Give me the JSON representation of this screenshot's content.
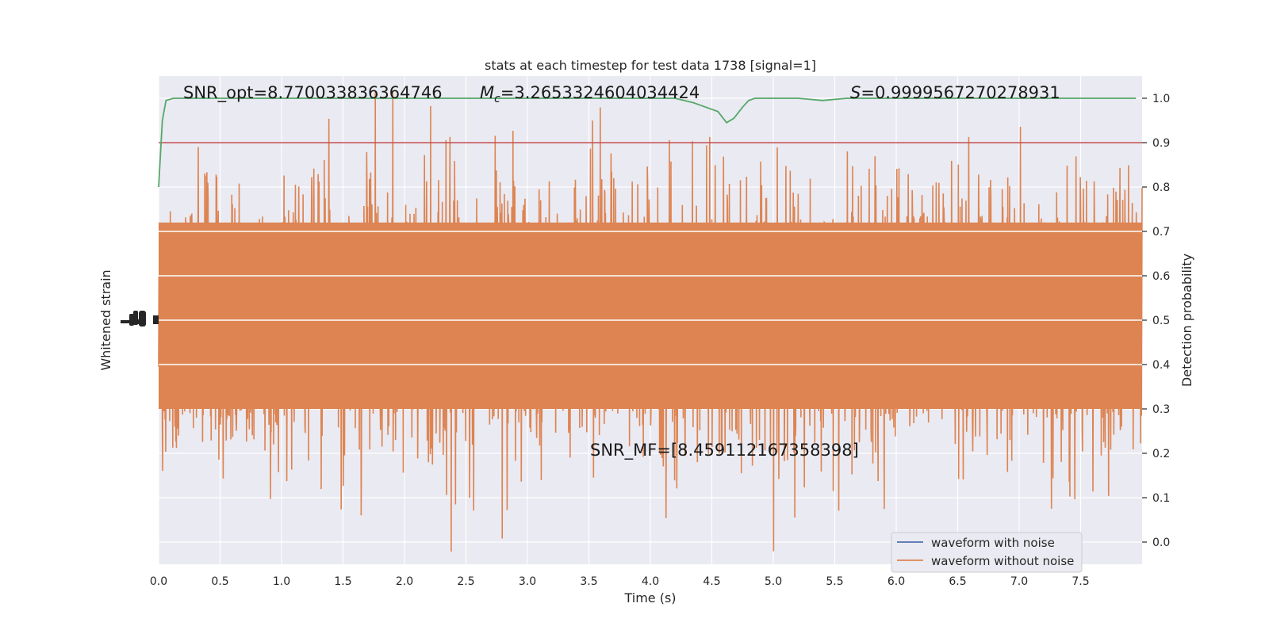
{
  "chart_data": {
    "type": "line",
    "title": "stats at each timestep for test data 1738 [signal=1]",
    "xlabel": "Time (s)",
    "ylabel_left": "Whitened strain",
    "ylabel_right": "Detection probability",
    "xlim": [
      0.0,
      8.0
    ],
    "ylim_right": [
      -0.05,
      1.05
    ],
    "x_ticks": [
      "0.0",
      "0.5",
      "1.0",
      "1.5",
      "2.0",
      "2.5",
      "3.0",
      "3.5",
      "4.0",
      "4.5",
      "5.0",
      "5.5",
      "6.0",
      "6.5",
      "7.0",
      "7.5"
    ],
    "x_tick_values": [
      0.0,
      0.5,
      1.0,
      1.5,
      2.0,
      2.5,
      3.0,
      3.5,
      4.0,
      4.5,
      5.0,
      5.5,
      6.0,
      6.5,
      7.0,
      7.5
    ],
    "y_ticks_right": [
      "0.0",
      "0.1",
      "0.2",
      "0.3",
      "0.4",
      "0.5",
      "0.6",
      "0.7",
      "0.8",
      "0.9",
      "1.0"
    ],
    "y_tick_values_right": [
      0.0,
      0.1,
      0.2,
      0.3,
      0.4,
      0.5,
      0.6,
      0.7,
      0.8,
      0.9,
      1.0
    ],
    "grid": true,
    "legend_position": "lower-right",
    "series": [
      {
        "name": "waveform with noise",
        "color": "#4c72b0",
        "values": []
      },
      {
        "name": "waveform without noise",
        "color": "#dd8452",
        "values": []
      }
    ],
    "detection_probability": {
      "color": "#55a868",
      "x": [
        0.0,
        0.03,
        0.06,
        0.12,
        0.5,
        1.0,
        2.0,
        3.0,
        4.0,
        4.2,
        4.35,
        4.45,
        4.55,
        4.62,
        4.68,
        4.75,
        4.8,
        4.85,
        5.0,
        5.2,
        5.4,
        5.6,
        5.8,
        6.0,
        7.0,
        7.95
      ],
      "y": [
        0.8,
        0.95,
        0.995,
        1.0,
        1.0,
        1.0,
        1.0,
        1.0,
        1.0,
        1.0,
        0.99,
        0.98,
        0.97,
        0.945,
        0.955,
        0.98,
        0.995,
        1.0,
        1.0,
        1.0,
        0.995,
        1.0,
        1.0,
        1.0,
        1.0,
        1.0
      ]
    },
    "threshold": {
      "color": "#c44e52",
      "value": 0.9
    },
    "annotations": {
      "snr_opt": "SNR_opt=8.770033836364746",
      "mc_prefix": "M",
      "mc_sub": "c",
      "mc_value": "=3.2653324604034424",
      "s_prefix": "S",
      "s_value": "=0.9999567270278931",
      "snr_mf": "SNR_MF=[8.459112167358398]"
    },
    "left_axis_ticks_overlapping": true
  },
  "colors": {
    "plot_bg": "#eaeaf2",
    "grid": "#ffffff"
  }
}
